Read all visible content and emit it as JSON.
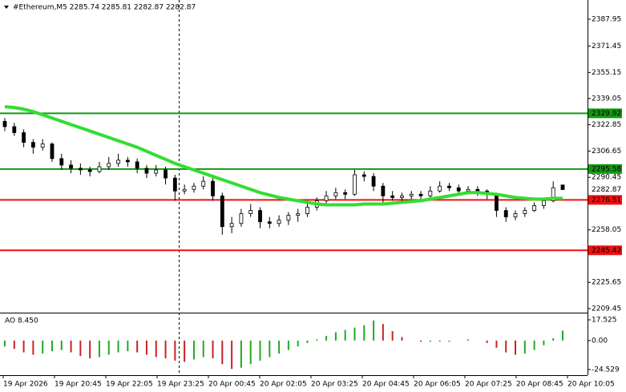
{
  "chart_data": {
    "type": "candlestick",
    "title": "#Ethereum,M5  2285.74 2285.81 2282.87 2282.87",
    "candles": [
      [
        2325,
        2327,
        2319,
        2321.7
      ],
      [
        2321.7,
        2324,
        2316,
        2318
      ],
      [
        2318,
        2320,
        2309,
        2312
      ],
      [
        2312,
        2314,
        2305,
        2309
      ],
      [
        2309,
        2314,
        2307,
        2311
      ],
      [
        2311,
        2312,
        2300,
        2302
      ],
      [
        2302,
        2305,
        2295,
        2298
      ],
      [
        2298,
        2301,
        2293,
        2296
      ],
      [
        2296,
        2299,
        2292,
        2295
      ],
      [
        2295,
        2297,
        2291,
        2294
      ],
      [
        2294,
        2300,
        2293,
        2297
      ],
      [
        2297,
        2303,
        2295,
        2299
      ],
      [
        2299,
        2305,
        2297,
        2301
      ],
      [
        2301,
        2303,
        2297,
        2300
      ],
      [
        2300,
        2302,
        2293,
        2296
      ],
      [
        2296,
        2298,
        2290,
        2293
      ],
      [
        2293,
        2298,
        2291,
        2295
      ],
      [
        2295,
        2297,
        2286,
        2290
      ],
      [
        2290,
        2292,
        2276,
        2282
      ],
      [
        2282,
        2286,
        2280,
        2283
      ],
      [
        2283,
        2287,
        2281,
        2285
      ],
      [
        2285,
        2291,
        2283,
        2288
      ],
      [
        2288,
        2290,
        2276,
        2279
      ],
      [
        2279,
        2281,
        2255,
        2260
      ],
      [
        2260,
        2266,
        2256,
        2262
      ],
      [
        2262,
        2271,
        2260,
        2268
      ],
      [
        2268,
        2274,
        2266,
        2270
      ],
      [
        2270,
        2272,
        2259,
        2263
      ],
      [
        2263,
        2266,
        2259,
        2262
      ],
      [
        2262,
        2267,
        2260,
        2264
      ],
      [
        2264,
        2269,
        2261,
        2267
      ],
      [
        2267,
        2271,
        2263,
        2268
      ],
      [
        2268,
        2275,
        2266,
        2272
      ],
      [
        2272,
        2278,
        2270,
        2276
      ],
      [
        2276,
        2282,
        2274,
        2279
      ],
      [
        2279,
        2284,
        2277,
        2281
      ],
      [
        2281,
        2283,
        2277,
        2280
      ],
      [
        2280,
        2295,
        2279,
        2292
      ],
      [
        2292,
        2294,
        2288,
        2291
      ],
      [
        2291,
        2293,
        2282,
        2285
      ],
      [
        2285,
        2287,
        2275,
        2279
      ],
      [
        2279,
        2282,
        2276,
        2278
      ],
      [
        2278,
        2281,
        2276,
        2279
      ],
      [
        2279,
        2282,
        2277,
        2280
      ],
      [
        2280,
        2282,
        2277,
        2279
      ],
      [
        2279,
        2285,
        2278,
        2282
      ],
      [
        2282,
        2288,
        2281,
        2285
      ],
      [
        2285,
        2287,
        2282,
        2284
      ],
      [
        2284,
        2286,
        2280,
        2282
      ],
      [
        2282,
        2285,
        2280,
        2283
      ],
      [
        2283,
        2285,
        2279,
        2282
      ],
      [
        2282,
        2283,
        2277,
        2280
      ],
      [
        2280,
        2281,
        2266,
        2270
      ],
      [
        2270,
        2272,
        2263,
        2266
      ],
      [
        2266,
        2270,
        2264,
        2268
      ],
      [
        2268,
        2272,
        2266,
        2270
      ],
      [
        2270,
        2275,
        2269,
        2273
      ],
      [
        2273,
        2278,
        2271,
        2276
      ],
      [
        2276,
        2288,
        2275,
        2284
      ],
      [
        2285.74,
        2285.81,
        2282.87,
        2282.87
      ]
    ],
    "ma": {
      "color": "#33dd33",
      "values": [
        2334,
        2333.5,
        2332.5,
        2331,
        2329,
        2327,
        2325,
        2323,
        2321,
        2319,
        2317,
        2315,
        2313,
        2311,
        2309,
        2306.5,
        2304,
        2301.5,
        2299,
        2297,
        2295,
        2293,
        2291,
        2289,
        2287,
        2285,
        2283,
        2281,
        2279.5,
        2278,
        2277,
        2276,
        2275,
        2274,
        2273.5,
        2273.5,
        2273.5,
        2273.5,
        2274,
        2274,
        2274,
        2274.5,
        2275,
        2275.5,
        2276,
        2277,
        2278,
        2279,
        2280,
        2281,
        2281,
        2280.5,
        2280,
        2279,
        2278,
        2277.5,
        2277,
        2277,
        2277.5,
        2277.5
      ]
    },
    "levels": [
      {
        "value": 2329.92,
        "color": "#119911"
      },
      {
        "value": 2295.58,
        "color": "#119911"
      },
      {
        "value": 2276.51,
        "color": "#ee1111"
      },
      {
        "value": 2245.42,
        "color": "#ee1111"
      }
    ],
    "last_price": 2282.87,
    "ylim": [
      2206.98,
      2399.82
    ],
    "yticks": [
      2387.95,
      2371.45,
      2355.15,
      2339.05,
      2322.85,
      2306.65,
      2290.45,
      2258.05,
      2225.65,
      2209.45
    ],
    "xtick_labels": [
      "19 Apr 2026",
      "19 Apr 20:45",
      "19 Apr 22:05",
      "19 Apr 23:25",
      "20 Apr 00:45",
      "20 Apr 02:05",
      "20 Apr 03:25",
      "20 Apr 04:45",
      "20 Apr 06:05",
      "20 Apr 07:25",
      "20 Apr 08:45",
      "20 Apr 10:05"
    ],
    "indicator": {
      "type": "histogram",
      "title": "AO 8.450",
      "up_color": "#22aa22",
      "down_color": "#cc2222",
      "values": [
        -5,
        -7,
        -10,
        -12,
        -11,
        -9,
        -8,
        -10,
        -13,
        -15,
        -14,
        -12,
        -10,
        -9,
        -10,
        -12,
        -14,
        -15,
        -17,
        -18,
        -16,
        -14,
        -15,
        -20,
        -24,
        -23,
        -20,
        -17,
        -14,
        -11,
        -8,
        -5,
        -2,
        1,
        4,
        7,
        9,
        11,
        13,
        17,
        14,
        8,
        3,
        0,
        -1,
        -1,
        -1,
        -1,
        0,
        1,
        0,
        -2,
        -6,
        -10,
        -12,
        -11,
        -8,
        -4,
        2,
        8.45
      ],
      "ylim": [
        -29.28,
        22.27
      ],
      "yticks": [
        17.525,
        {
          "value": 0,
          "label": "0.00"
        },
        -24.529
      ]
    }
  }
}
